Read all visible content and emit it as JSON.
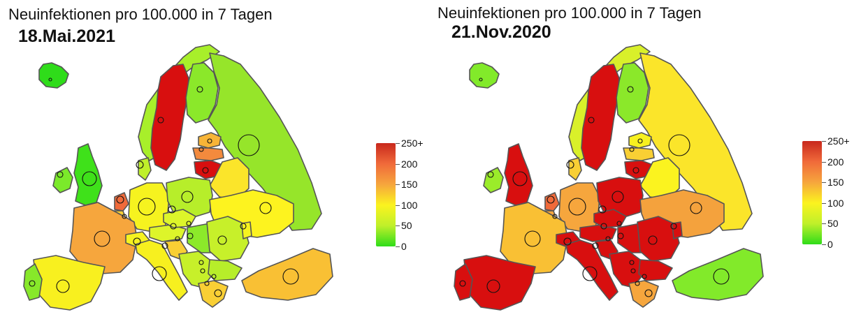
{
  "maps": [
    {
      "title": "Neuinfektionen pro 100.000 in 7 Tagen",
      "date": "18.Mai.2021",
      "countries": {
        "iceland": "#2fdc1a",
        "norway": "#a8ef2a",
        "sweden": "#d80f0f",
        "finland": "#8be82a",
        "russia": "#96e52a",
        "estonia": "#f7b437",
        "latvia": "#f38a3d",
        "lithuania": "#d80f0f",
        "belarus": "#fbe52a",
        "uk": "#3fe11a",
        "ireland": "#7bea2a",
        "netherlands": "#f06a3a",
        "belgium": "#f9cf34",
        "germany": "#f6f31f",
        "denmark": "#bff02a",
        "poland": "#b7ee2a",
        "ukraine": "#fdf31f",
        "france": "#f6a63d",
        "switzerland": "#f6f31f",
        "austria": "#ddf52a",
        "czech": "#ddf52a",
        "hungary": "#8ce92a",
        "romania": "#c7f02a",
        "italy": "#f7f01f",
        "croatia": "#f9cf34",
        "balkans": "#c7f02a",
        "bulgaria": "#b7ee2a",
        "greece": "#f9cf34",
        "spain": "#f8f01f",
        "portugal": "#87e82a",
        "turkey": "#f9c034",
        "moldova": "#f6f31f"
      }
    },
    {
      "title": "Neuinfektionen pro 100.000 in 7 Tagen",
      "date": "21.Nov.2020",
      "countries": {
        "iceland": "#82ea2a",
        "norway": "#d9f02a",
        "sweden": "#d80f0f",
        "finland": "#8be82a",
        "russia": "#fbe52a",
        "estonia": "#f7f01f",
        "latvia": "#f9cf34",
        "lithuania": "#d80f0f",
        "belarus": "#fbf31f",
        "uk": "#d80f0f",
        "ireland": "#9bec2a",
        "netherlands": "#f06a3a",
        "belgium": "#f6a63d",
        "germany": "#f6a63d",
        "denmark": "#f9cf34",
        "poland": "#d80f0f",
        "ukraine": "#f4a23d",
        "france": "#f9c034",
        "switzerland": "#d80f0f",
        "austria": "#d80f0f",
        "czech": "#d80f0f",
        "hungary": "#d80f0f",
        "romania": "#d80f0f",
        "italy": "#d80f0f",
        "croatia": "#d80f0f",
        "balkans": "#d80f0f",
        "bulgaria": "#d80f0f",
        "greece": "#f6a63d",
        "spain": "#d80f0f",
        "portugal": "#d80f0f",
        "turkey": "#82ea2a",
        "moldova": "#d80f0f"
      }
    }
  ],
  "legend": {
    "labels": [
      "250+",
      "200",
      "150",
      "100",
      "50",
      "0"
    ],
    "colors": [
      "#c8281c",
      "#f06a3a",
      "#f6a63d",
      "#fbf31f",
      "#bff02a",
      "#2fdc1a"
    ]
  }
}
